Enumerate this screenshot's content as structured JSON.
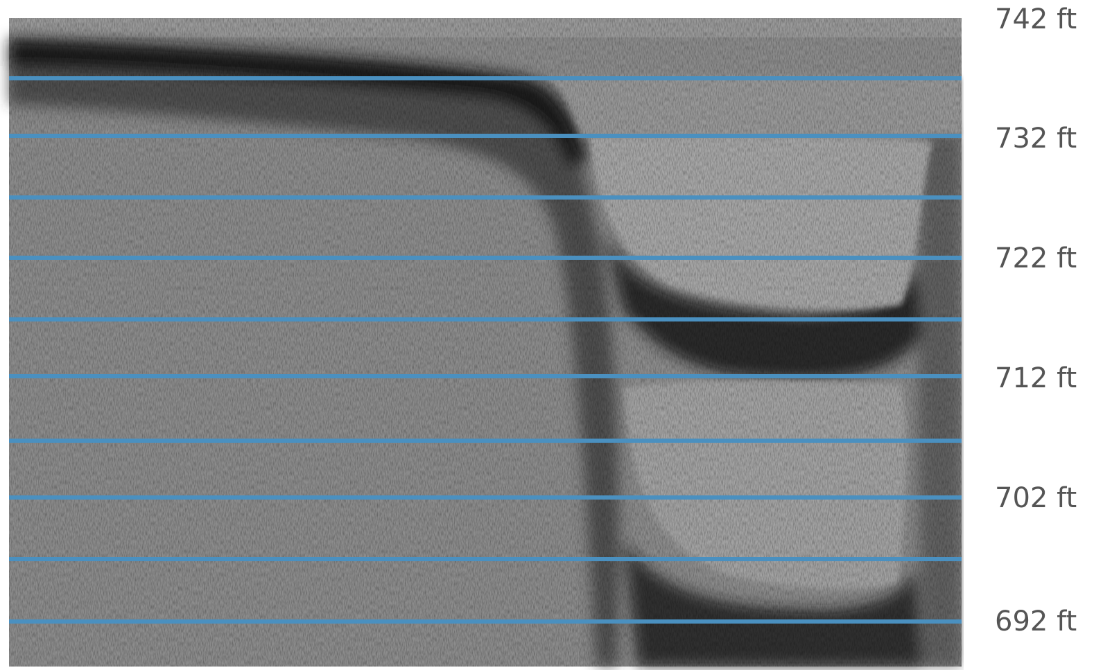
{
  "scale_labels": [
    "742 ft",
    "732 ft",
    "722 ft",
    "712 ft",
    "702 ft",
    "692 ft"
  ]
}
